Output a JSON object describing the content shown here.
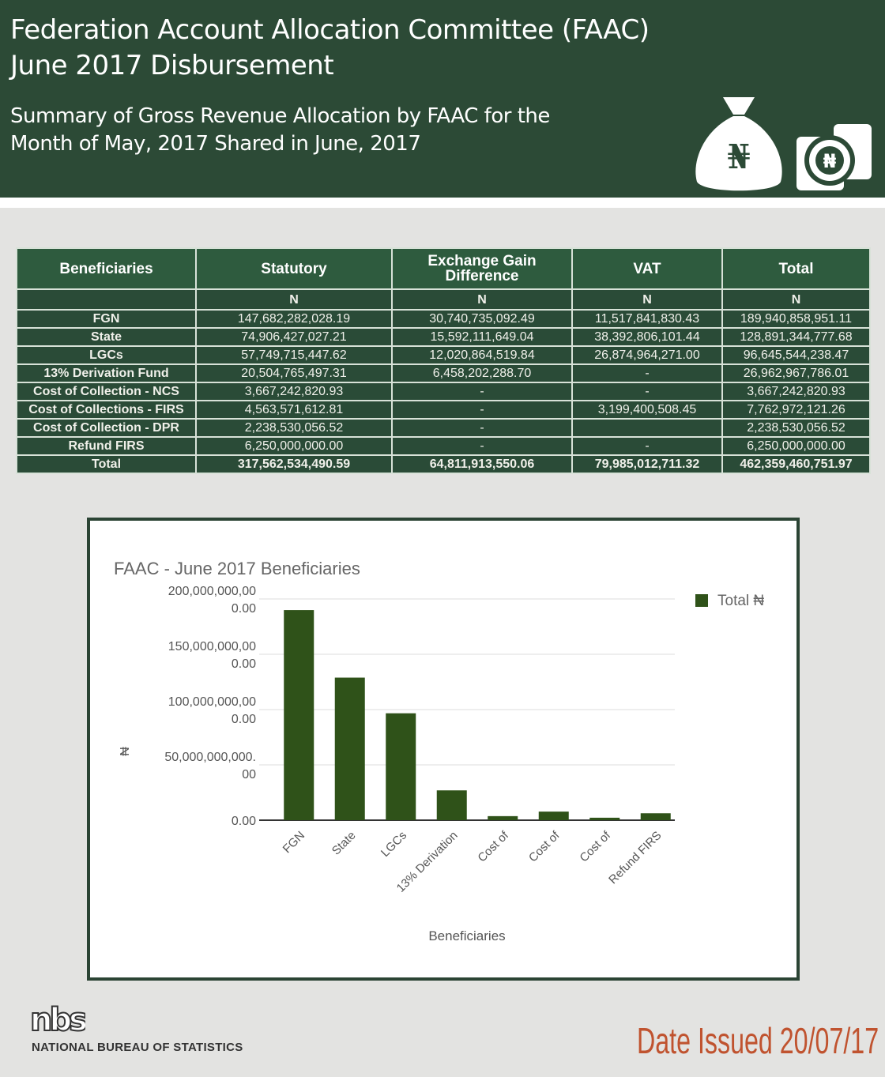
{
  "header": {
    "title_line1": "Federation Account Allocation Committee (FAAC)",
    "title_line2": "June 2017 Disbursement",
    "subtitle_line1": "Summary of Gross Revenue Allocation by FAAC for the",
    "subtitle_line2": "Month of May, 2017 Shared in June, 2017",
    "icon1": "money-bag-naira-icon",
    "icon2": "naira-coins-icon",
    "naira": "₦"
  },
  "table": {
    "headers": [
      "Beneficiaries",
      "Statutory",
      "Exchange Gain Difference",
      "VAT",
      "Total"
    ],
    "currency_row": [
      "",
      "N",
      "N",
      "N",
      "N"
    ],
    "rows": [
      [
        "FGN",
        "147,682,282,028.19",
        "30,740,735,092.49",
        "11,517,841,830.43",
        "189,940,858,951.11"
      ],
      [
        "State",
        "74,906,427,027.21",
        "15,592,111,649.04",
        "38,392,806,101.44",
        "128,891,344,777.68"
      ],
      [
        "LGCs",
        "57,749,715,447.62",
        "12,020,864,519.84",
        "26,874,964,271.00",
        "96,645,544,238.47"
      ],
      [
        "13% Derivation Fund",
        "20,504,765,497.31",
        "6,458,202,288.70",
        "-",
        "26,962,967,786.01"
      ],
      [
        "Cost of Collection - NCS",
        "3,667,242,820.93",
        "-",
        "-",
        "3,667,242,820.93"
      ],
      [
        "Cost of Collections - FIRS",
        "4,563,571,612.81",
        "-",
        "3,199,400,508.45",
        "7,762,972,121.26"
      ],
      [
        "Cost of Collection - DPR",
        "2,238,530,056.52",
        "-",
        "",
        "2,238,530,056.52"
      ],
      [
        "Refund FIRS",
        "6,250,000,000.00",
        "-",
        "-",
        "6,250,000,000.00"
      ]
    ],
    "total_row": [
      "Total",
      "317,562,534,490.59",
      "64,811,913,550.06",
      "79,985,012,711.32",
      "462,359,460,751.97"
    ]
  },
  "chart_data": {
    "type": "bar",
    "title": "FAAC - June 2017 Beneficiaries",
    "xlabel": "Beneficiaries",
    "ylabel": "₦",
    "categories": [
      "FGN",
      "State",
      "LGCs",
      "13% Derivation",
      "Cost of",
      "Cost of",
      "Cost of",
      "Refund FIRS"
    ],
    "series": [
      {
        "name": "Total ₦",
        "values": [
          189940858951.11,
          128891344777.68,
          96645544238.47,
          26962967786.01,
          3667242820.93,
          7762972121.26,
          2238530056.52,
          6250000000.0
        ],
        "color": "#2f5219"
      }
    ],
    "ylim": [
      0,
      200000000000
    ],
    "yticks": [
      {
        "value": 200000000000,
        "label": [
          "200,000,000,00",
          "0.00"
        ]
      },
      {
        "value": 150000000000,
        "label": [
          "150,000,000,00",
          "0.00"
        ]
      },
      {
        "value": 100000000000,
        "label": [
          "100,000,000,00",
          "0.00"
        ]
      },
      {
        "value": 50000000000,
        "label": [
          "50,000,000,000.",
          "00"
        ]
      },
      {
        "value": 0,
        "label": [
          "0.00"
        ]
      }
    ],
    "grid": true,
    "legend": "top-right"
  },
  "footer": {
    "org": "NATIONAL BUREAU OF STATISTICS",
    "logo_text": "nbs",
    "date": "Date Issued 20/07/17"
  }
}
